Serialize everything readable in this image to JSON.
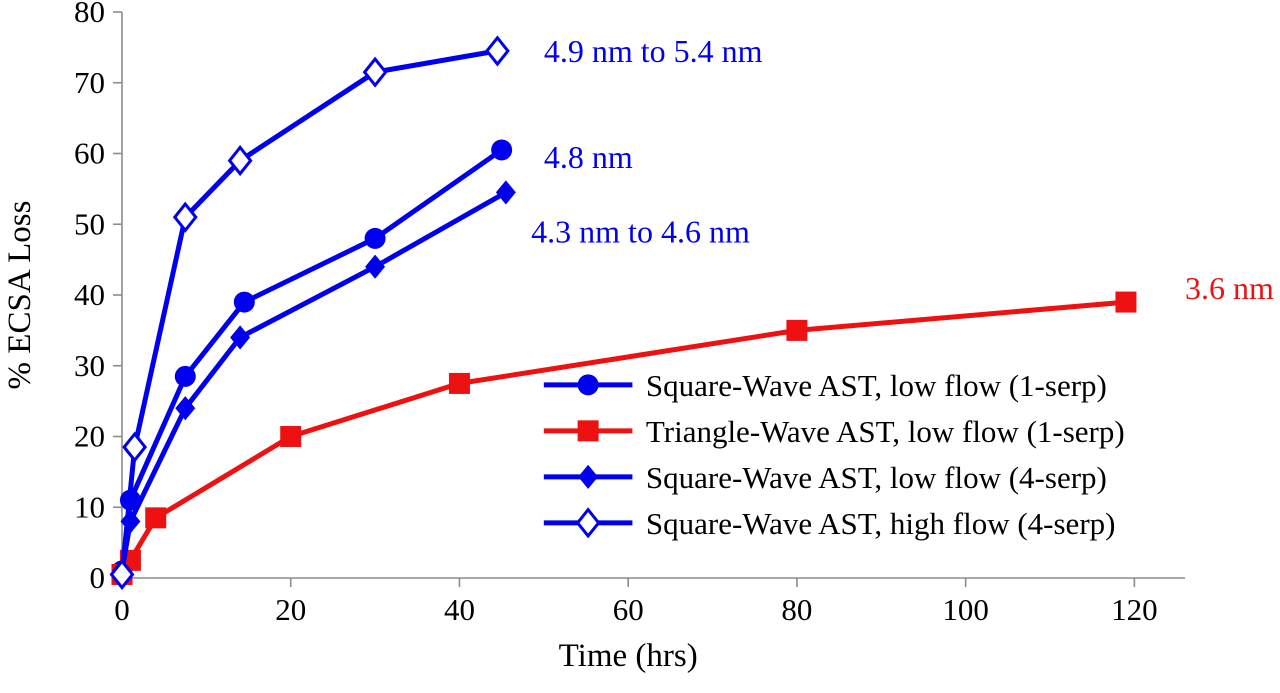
{
  "chart_data": {
    "type": "line",
    "title": "",
    "xlabel": "Time (hrs)",
    "ylabel": "% ECSA Loss",
    "xlim": [
      0,
      126
    ],
    "ylim": [
      0,
      80
    ],
    "x_ticks": [
      0,
      20,
      40,
      60,
      80,
      100,
      120
    ],
    "y_ticks": [
      0,
      10,
      20,
      30,
      40,
      50,
      60,
      70,
      80
    ],
    "grid": false,
    "background": "#ffffff",
    "axis_color": "#8c8c8c",
    "text_color": "#000000",
    "series": [
      {
        "name": "Square-Wave AST, low flow (1-serp)",
        "color": "#0000ee",
        "marker": "circle",
        "x": [
          0,
          1,
          7.5,
          14.5,
          30,
          45
        ],
        "y": [
          1,
          11,
          28.5,
          39,
          48,
          60.5
        ]
      },
      {
        "name": "Triangle-Wave AST, low flow (1-serp)",
        "color": "#ee1111",
        "marker": "square",
        "x": [
          0,
          1,
          4,
          20,
          40,
          80,
          119
        ],
        "y": [
          0.5,
          2.5,
          8.5,
          20,
          27.5,
          35,
          39
        ]
      },
      {
        "name": "Square-Wave AST, low flow (4-serp)",
        "color": "#0000ee",
        "marker": "diamond",
        "x": [
          0,
          1,
          7.5,
          14,
          30,
          45.5
        ],
        "y": [
          1,
          8,
          24,
          34,
          44,
          54.5
        ]
      },
      {
        "name": "Square-Wave AST, high flow (4-serp)",
        "color": "#0000ee",
        "marker": "diamond-open",
        "x": [
          0,
          1.5,
          7.5,
          14,
          30,
          44.5
        ],
        "y": [
          0.5,
          18.5,
          51,
          59,
          71.5,
          74.5
        ]
      }
    ],
    "annotations": [
      {
        "text": "4.9 nm to 5.4 nm",
        "x": 50,
        "y": 74.5,
        "color": "#0000ee"
      },
      {
        "text": "4.8 nm",
        "x": 50,
        "y": 59.5,
        "color": "#0000ee"
      },
      {
        "text": "4.3 nm to 4.6 nm",
        "x": 48.5,
        "y": 49,
        "color": "#0000ee"
      },
      {
        "text": "3.6 nm",
        "x": 126,
        "y": 41,
        "color": "#ee1111"
      }
    ],
    "legend": {
      "position": "inside-lower-right",
      "x": 50,
      "y_start": 27.3,
      "row_step": 6.5,
      "sample_len": 10.5,
      "text_gap": 1.6
    }
  }
}
